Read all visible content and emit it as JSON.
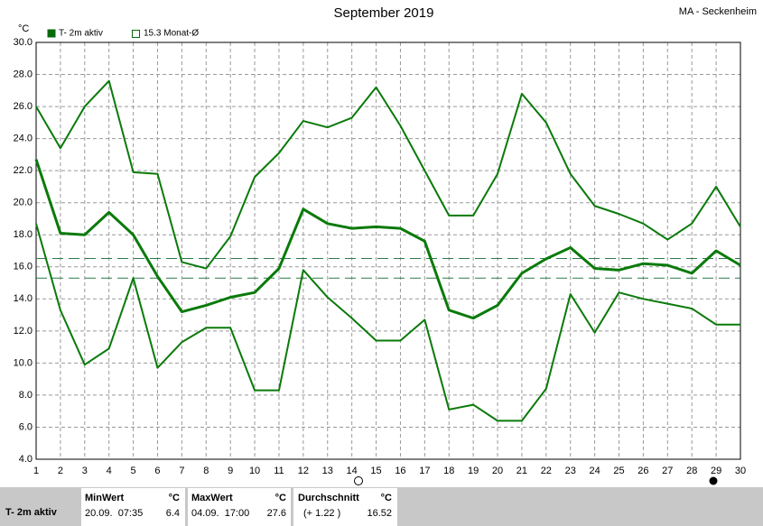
{
  "chart_data": {
    "type": "line",
    "title": "September 2019",
    "station": "MA - Seckenheim",
    "y_unit": "°C",
    "x": [
      1,
      2,
      3,
      4,
      5,
      6,
      7,
      8,
      9,
      10,
      11,
      12,
      13,
      14,
      15,
      16,
      17,
      18,
      19,
      20,
      21,
      22,
      23,
      24,
      25,
      26,
      27,
      28,
      29,
      30
    ],
    "xlim": [
      1,
      30
    ],
    "xticks": [
      1,
      2,
      3,
      4,
      5,
      6,
      7,
      8,
      9,
      10,
      11,
      12,
      13,
      14,
      15,
      16,
      17,
      18,
      19,
      20,
      21,
      22,
      23,
      24,
      25,
      26,
      27,
      28,
      29,
      30
    ],
    "ylim": [
      4,
      30
    ],
    "yticks": [
      {
        "value": 4,
        "label": "4.0"
      },
      {
        "value": 6,
        "label": "6.0"
      },
      {
        "value": 8,
        "label": "8.0"
      },
      {
        "value": 10,
        "label": "10.0"
      },
      {
        "value": 12,
        "label": "12.0"
      },
      {
        "value": 14,
        "label": "14.0"
      },
      {
        "value": 16,
        "label": "16.0"
      },
      {
        "value": 18,
        "label": "18.0"
      },
      {
        "value": 20,
        "label": "20.0"
      },
      {
        "value": 22,
        "label": "22.0"
      },
      {
        "value": 24,
        "label": "24.0"
      },
      {
        "value": 26,
        "label": "26.0"
      },
      {
        "value": 28,
        "label": "28.0"
      },
      {
        "value": 30,
        "label": "30.0"
      }
    ],
    "grid": true,
    "series": [
      {
        "color": "#0a7a0a",
        "width": 2,
        "values": [
          26.0,
          23.4,
          26.0,
          27.6,
          21.9,
          21.8,
          16.3,
          15.9,
          17.9,
          21.6,
          23.1,
          25.1,
          24.7,
          25.3,
          27.2,
          24.8,
          22.0,
          19.2,
          19.2,
          21.8,
          26.8,
          25.0,
          21.8,
          19.8,
          19.3,
          18.7,
          17.7,
          18.7,
          21.0,
          18.5
        ]
      },
      {
        "name": "T- 2m aktiv",
        "color": "#0a7a0a",
        "width": 3,
        "values": [
          22.7,
          18.1,
          18.0,
          19.4,
          18.0,
          15.4,
          13.2,
          13.6,
          14.1,
          14.4,
          15.9,
          19.6,
          18.7,
          18.4,
          18.5,
          18.4,
          17.6,
          13.3,
          12.8,
          13.6,
          15.6,
          16.5,
          17.2,
          15.9,
          15.8,
          16.2,
          16.1,
          15.6,
          17.0,
          16.1
        ]
      },
      {
        "color": "#0a7a0a",
        "width": 2,
        "values": [
          18.7,
          13.3,
          9.9,
          10.9,
          15.3,
          9.7,
          11.3,
          12.2,
          12.2,
          8.3,
          8.3,
          15.8,
          14.1,
          12.8,
          11.4,
          11.4,
          12.7,
          7.1,
          7.4,
          6.4,
          6.4,
          8.4,
          14.3,
          11.9,
          14.4,
          14.0,
          13.7,
          13.4,
          12.4,
          12.4
        ]
      }
    ],
    "reference_lines": [
      {
        "value": 16.52,
        "color": "#2a7a4a"
      },
      {
        "value": 15.3,
        "color": "#2a7a4a"
      }
    ],
    "legend_month": "15.3 Monat-Ø"
  },
  "stats_table": {
    "row_label": "T- 2m aktiv",
    "headers": [
      "MinWert",
      "°C",
      "MaxWert",
      "°C",
      "Durchschnitt",
      "°C"
    ],
    "row": [
      "20.09.  07:35",
      "6.4",
      "04.09.  17:00",
      "27.6",
      "(+ 1.22 )",
      "16.52"
    ]
  }
}
